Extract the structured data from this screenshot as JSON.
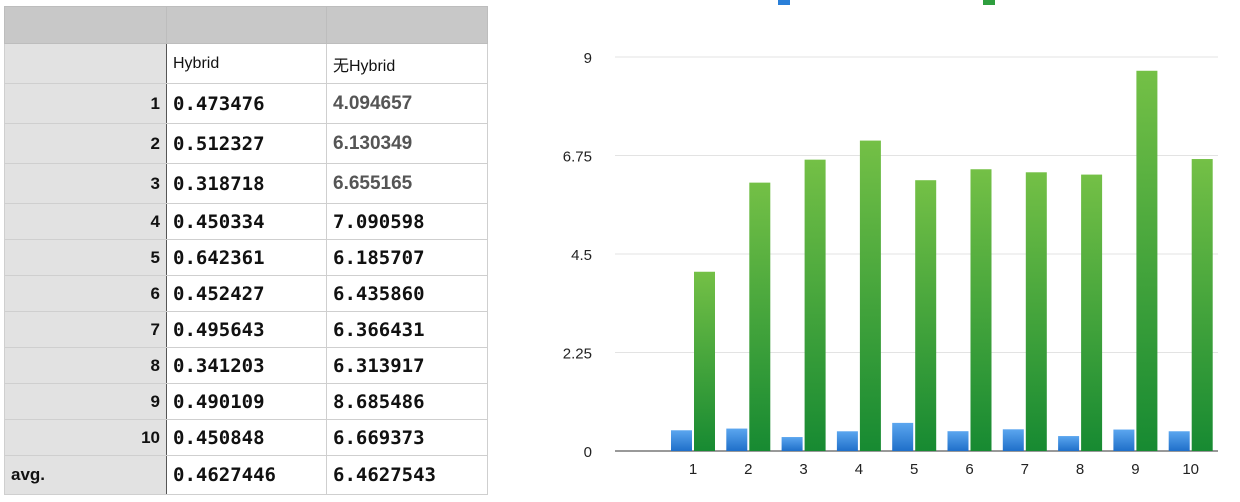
{
  "table": {
    "headers": [
      "",
      "Hybrid",
      "无Hybrid"
    ],
    "rows": [
      {
        "label": "1",
        "hybrid": "0.473476",
        "no_hybrid": "4.094657"
      },
      {
        "label": "2",
        "hybrid": "0.512327",
        "no_hybrid": "6.130349"
      },
      {
        "label": "3",
        "hybrid": "0.318718",
        "no_hybrid": "6.655165"
      },
      {
        "label": "4",
        "hybrid": "0.450334",
        "no_hybrid": "7.090598"
      },
      {
        "label": "5",
        "hybrid": "0.642361",
        "no_hybrid": "6.185707"
      },
      {
        "label": "6",
        "hybrid": "0.452427",
        "no_hybrid": "6.435860"
      },
      {
        "label": "7",
        "hybrid": "0.495643",
        "no_hybrid": "6.366431"
      },
      {
        "label": "8",
        "hybrid": "0.341203",
        "no_hybrid": "6.313917"
      },
      {
        "label": "9",
        "hybrid": "0.490109",
        "no_hybrid": "8.685486"
      },
      {
        "label": "10",
        "hybrid": "0.450848",
        "no_hybrid": "6.669373"
      }
    ],
    "avg": {
      "label": "avg.",
      "hybrid": "0.4627446",
      "no_hybrid": "6.4627543"
    }
  },
  "chart_data": {
    "type": "bar",
    "categories": [
      "1",
      "2",
      "3",
      "4",
      "5",
      "6",
      "7",
      "8",
      "9",
      "10"
    ],
    "series": [
      {
        "values": [
          0.473476,
          0.512327,
          0.318718,
          0.450334,
          0.642361,
          0.452427,
          0.495643,
          0.341203,
          0.490109,
          0.450848
        ],
        "color": "#2a7fd8"
      },
      {
        "values": [
          4.094657,
          6.130349,
          6.655165,
          7.090598,
          6.185707,
          6.43586,
          6.366431,
          6.313917,
          8.685486,
          6.669373
        ],
        "color": "#2e9e3e"
      }
    ],
    "yticks": [
      "0",
      "2.25",
      "4.5",
      "6.75",
      "9"
    ],
    "ylim": [
      0,
      9
    ],
    "grid": true,
    "legend": "top"
  }
}
